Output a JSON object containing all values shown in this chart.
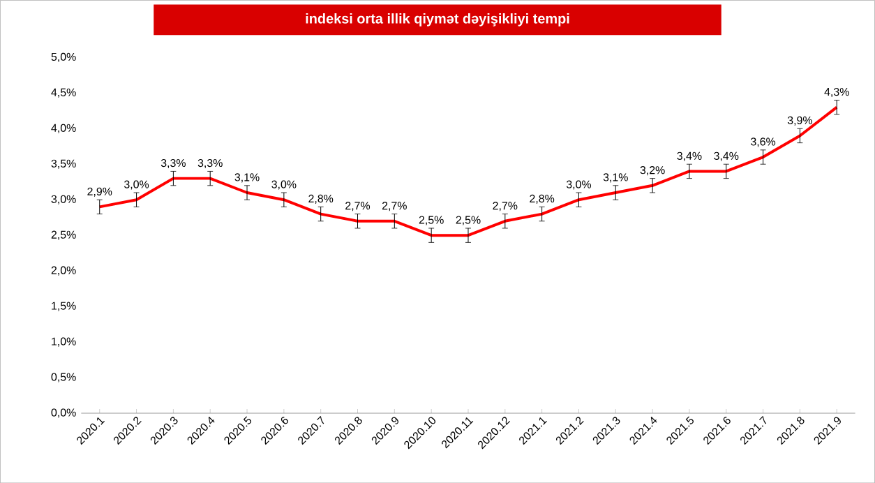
{
  "chart_data": {
    "type": "line",
    "title": "indeksi orta illik qiymət dəyişikliyi tempi",
    "categories": [
      "2020.1",
      "2020.2",
      "2020.3",
      "2020.4",
      "2020.5",
      "2020.6",
      "2020.7",
      "2020.8",
      "2020.9",
      "2020.10",
      "2020.11",
      "2020.12",
      "2021.1",
      "2021.2",
      "2021.3",
      "2021.4",
      "2021.5",
      "2021.6",
      "2021.7",
      "2021.8",
      "2021.9"
    ],
    "values": [
      2.9,
      3.0,
      3.3,
      3.3,
      3.1,
      3.0,
      2.8,
      2.7,
      2.7,
      2.5,
      2.5,
      2.7,
      2.8,
      3.0,
      3.1,
      3.2,
      3.4,
      3.4,
      3.6,
      3.9,
      4.3
    ],
    "errors": [
      0.1,
      0.1,
      0.1,
      0.1,
      0.1,
      0.1,
      0.1,
      0.1,
      0.1,
      0.1,
      0.1,
      0.1,
      0.1,
      0.1,
      0.1,
      0.1,
      0.1,
      0.1,
      0.1,
      0.1,
      0.1
    ],
    "value_labels": [
      "2,9%",
      "3,0%",
      "3,3%",
      "3,3%",
      "3,1%",
      "3,0%",
      "2,8%",
      "2,7%",
      "2,7%",
      "2,5%",
      "2,5%",
      "2,7%",
      "2,8%",
      "3,0%",
      "3,1%",
      "3,2%",
      "3,4%",
      "3,4%",
      "3,6%",
      "3,9%",
      "4,3%"
    ],
    "color": "#ff0000",
    "marker": "none",
    "line_style": "solid",
    "ylim": [
      0,
      5
    ],
    "yticks": [
      {
        "value": 0,
        "label": "0,0%"
      },
      {
        "value": 0.5,
        "label": "0,5%"
      },
      {
        "value": 1,
        "label": "1,0%"
      },
      {
        "value": 1.5,
        "label": "1,5%"
      },
      {
        "value": 2,
        "label": "2,0%"
      },
      {
        "value": 2.5,
        "label": "2,5%"
      },
      {
        "value": 3,
        "label": "3,0%"
      },
      {
        "value": 3.5,
        "label": "3,5%"
      },
      {
        "value": 4,
        "label": "4,0%"
      },
      {
        "value": 4.5,
        "label": "4,5%"
      },
      {
        "value": 5,
        "label": "5,0%"
      }
    ]
  }
}
